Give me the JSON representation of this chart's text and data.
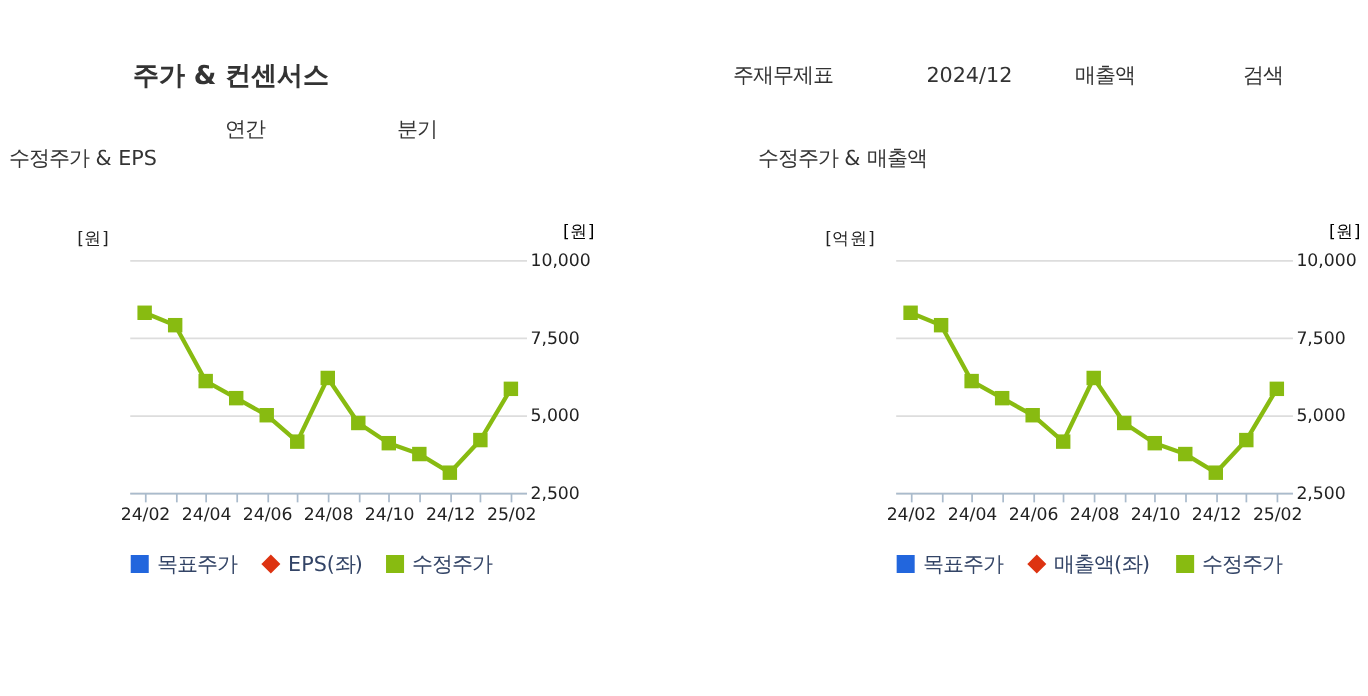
{
  "chart_data": [
    {
      "type": "line",
      "title": "수정주가 & EPS",
      "ylabel": "[원]",
      "y2label": "[원]",
      "annotations": [
        "주가 & 컨센서스",
        "주재무제표",
        "2024/12",
        "매출액",
        "검색",
        "연간",
        "분기"
      ],
      "categories": [
        "24/02",
        null,
        "24/04",
        null,
        "24/06",
        null,
        "24/08",
        null,
        "24/10",
        null,
        "24/12",
        null,
        "25/02"
      ],
      "series": [
        {
          "name": "목표주가",
          "color": "#2266dd",
          "marker": "square",
          "values": [
            null,
            null,
            null,
            null,
            null,
            null,
            null,
            null,
            null,
            null,
            null,
            null,
            null
          ]
        },
        {
          "name": "EPS(좌)",
          "color": "#dd3311",
          "marker": "diamond",
          "values": [
            null,
            null,
            null,
            null,
            null,
            null,
            null,
            null,
            null,
            null,
            null,
            null,
            null
          ]
        },
        {
          "name": "수정주가",
          "color": "#88bb11",
          "marker": "square",
          "axis": "y2",
          "values": [
            8300,
            7900,
            6100,
            5550,
            5000,
            4150,
            6200,
            4750,
            4100,
            3750,
            3150,
            4200,
            5850
          ]
        }
      ],
      "y2lim": [
        2500,
        10000
      ],
      "y2ticks": [
        {
          "value": 2500,
          "label": "2,500"
        },
        {
          "value": 5000,
          "label": "5,000"
        },
        {
          "value": 7500,
          "label": "7,500"
        },
        {
          "value": 10000,
          "label": "10,000"
        }
      ],
      "grid": "y",
      "legend": "bottom",
      "line_style": "solid"
    },
    {
      "type": "line",
      "title": "수정주가 & 매출액",
      "ylabel": "[억원]",
      "y2label": "[원]",
      "categories": [
        "24/02",
        null,
        "24/04",
        null,
        "24/06",
        null,
        "24/08",
        null,
        "24/10",
        null,
        "24/12",
        null,
        "25/02"
      ],
      "series": [
        {
          "name": "목표주가",
          "color": "#2266dd",
          "marker": "square",
          "values": [
            null,
            null,
            null,
            null,
            null,
            null,
            null,
            null,
            null,
            null,
            null,
            null,
            null
          ]
        },
        {
          "name": "매출액(좌)",
          "color": "#dd3311",
          "marker": "diamond",
          "values": [
            null,
            null,
            null,
            null,
            null,
            null,
            null,
            null,
            null,
            null,
            null,
            null,
            null
          ]
        },
        {
          "name": "수정주가",
          "color": "#88bb11",
          "marker": "square",
          "axis": "y2",
          "values": [
            8300,
            7900,
            6100,
            5550,
            5000,
            4150,
            6200,
            4750,
            4100,
            3750,
            3150,
            4200,
            5850
          ]
        }
      ],
      "y2lim": [
        2500,
        10000
      ],
      "y2ticks": [
        {
          "value": 2500,
          "label": "2,500"
        },
        {
          "value": 5000,
          "label": "5,000"
        },
        {
          "value": 7500,
          "label": "7,500"
        },
        {
          "value": 10000,
          "label": "10,000"
        }
      ],
      "grid": "y",
      "legend": "bottom",
      "line_style": "solid"
    }
  ]
}
